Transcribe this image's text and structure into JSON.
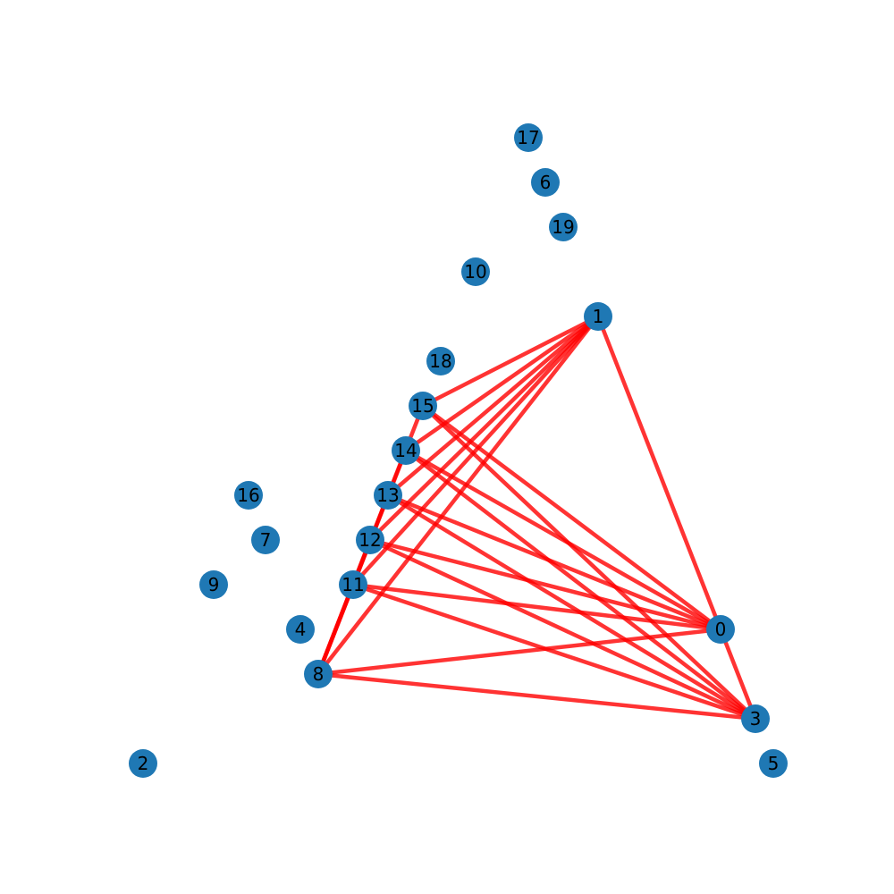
{
  "graph": {
    "node_color": "#1f78b4",
    "edge_color": "#ff0000",
    "edge_opacity": 0.8,
    "nodes": [
      {
        "id": "0"
      },
      {
        "id": "1"
      },
      {
        "id": "2"
      },
      {
        "id": "3"
      },
      {
        "id": "4"
      },
      {
        "id": "5"
      },
      {
        "id": "6"
      },
      {
        "id": "7"
      },
      {
        "id": "8"
      },
      {
        "id": "9"
      },
      {
        "id": "10"
      },
      {
        "id": "11"
      },
      {
        "id": "12"
      },
      {
        "id": "13"
      },
      {
        "id": "14"
      },
      {
        "id": "15"
      },
      {
        "id": "16"
      },
      {
        "id": "17"
      },
      {
        "id": "18"
      },
      {
        "id": "19"
      }
    ],
    "edges": [
      [
        "1",
        "0"
      ],
      [
        "1",
        "15"
      ],
      [
        "1",
        "14"
      ],
      [
        "1",
        "13"
      ],
      [
        "1",
        "12"
      ],
      [
        "1",
        "11"
      ],
      [
        "1",
        "8"
      ],
      [
        "0",
        "3"
      ],
      [
        "15",
        "8"
      ],
      [
        "14",
        "8"
      ],
      [
        "13",
        "8"
      ],
      [
        "12",
        "8"
      ],
      [
        "11",
        "8"
      ],
      [
        "15",
        "0"
      ],
      [
        "14",
        "0"
      ],
      [
        "13",
        "0"
      ],
      [
        "12",
        "0"
      ],
      [
        "11",
        "0"
      ],
      [
        "8",
        "0"
      ],
      [
        "15",
        "3"
      ],
      [
        "14",
        "3"
      ],
      [
        "13",
        "3"
      ],
      [
        "12",
        "3"
      ],
      [
        "11",
        "3"
      ],
      [
        "8",
        "3"
      ]
    ]
  }
}
